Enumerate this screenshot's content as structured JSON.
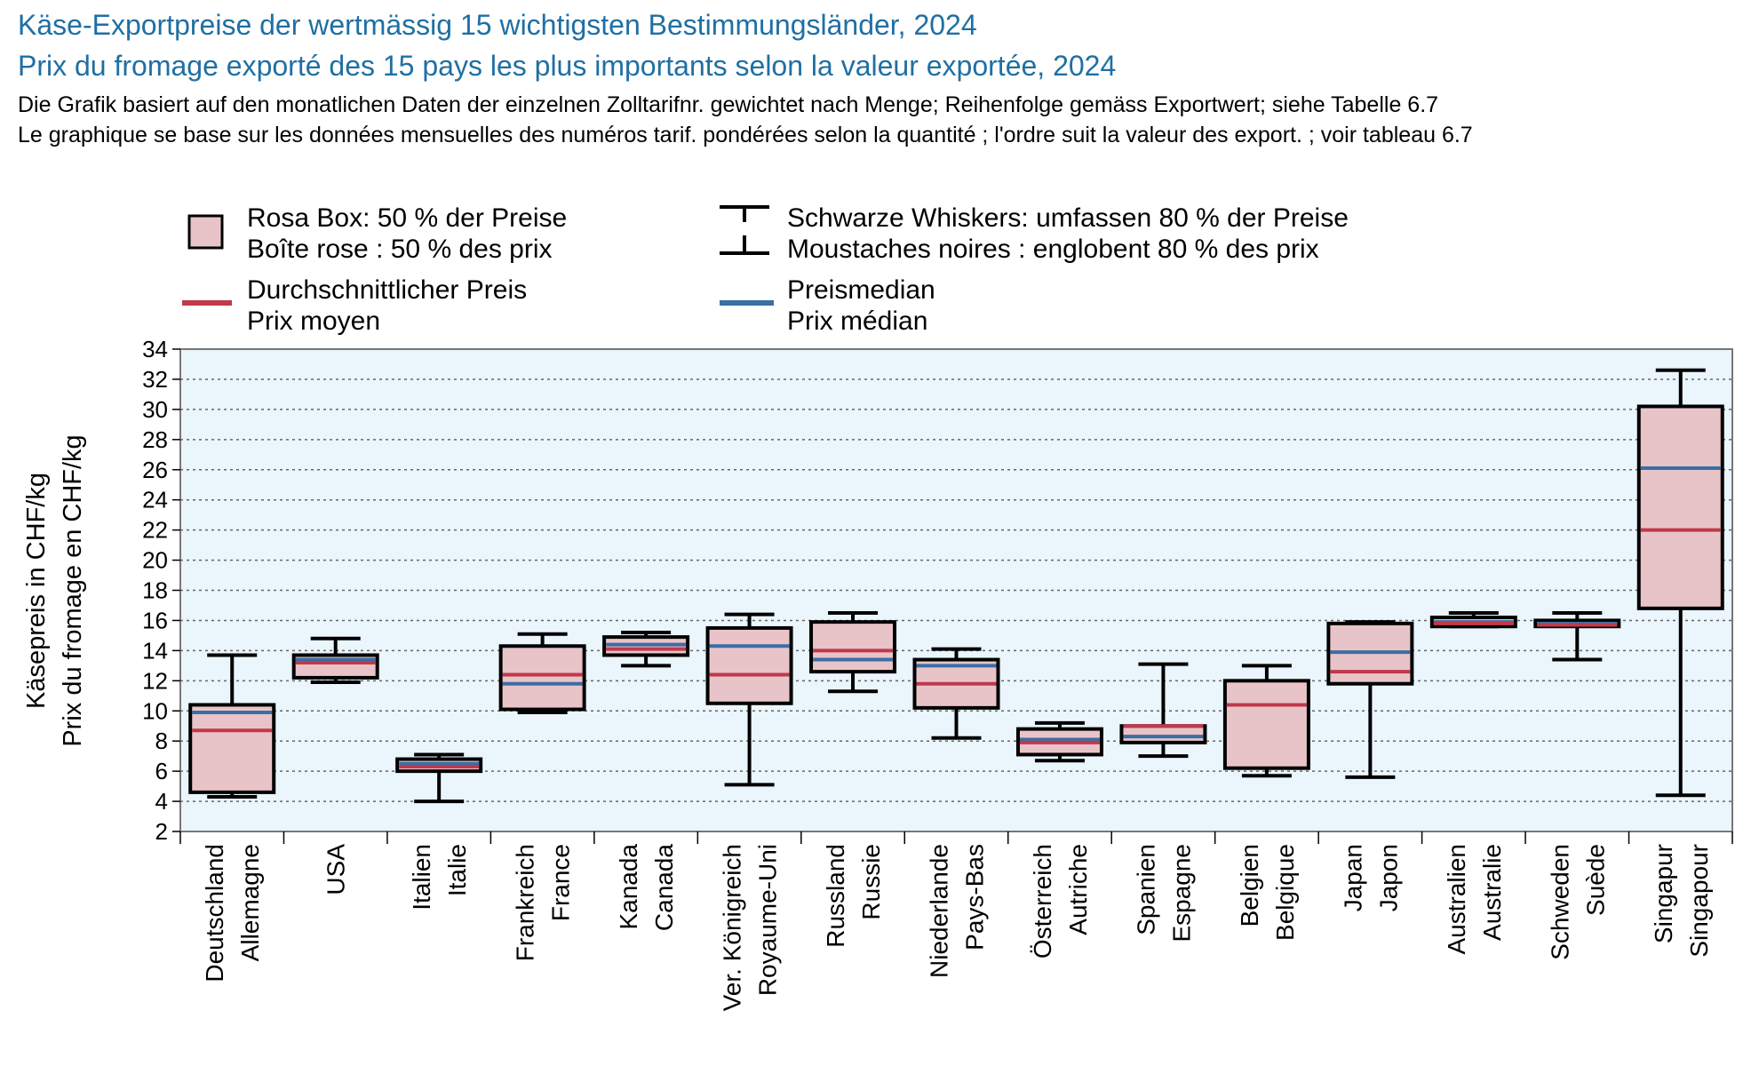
{
  "header": {
    "title_de": "Käse-Exportpreise der wertmässig 15 wichtigsten Bestimmungsländer, 2024",
    "title_fr": "Prix du fromage exporté des 15 pays les plus importants selon la valeur exportée, 2024",
    "note_de": "Die Grafik basiert auf den monatlichen Daten der einzelnen Zolltarifnr. gewichtet nach Menge; Reihenfolge gemäss Exportwert; siehe Tabelle 6.7",
    "note_fr": "Le graphique se base sur les données mensuelles des numéros tarif. pondérées selon la quantité ; l'ordre suit la valeur des export. ; voir tableau 6.7"
  },
  "legend": {
    "box_de": "Rosa Box: 50 % der Preise",
    "box_fr": "Boîte rose : 50 % des prix",
    "whisker_de": "Schwarze Whiskers: umfassen 80 % der Preise",
    "whisker_fr": "Moustaches noires : englobent 80 % des prix",
    "mean_de": "Durchschnittlicher Preis",
    "mean_fr": "Prix moyen",
    "median_de": "Preismedian",
    "median_fr": "Prix médian"
  },
  "colors": {
    "box_fill": "#e8c4c9",
    "plot_bg": "#eaf5fc",
    "mean": "#c0394b",
    "median": "#3a6ea5",
    "title": "#1f6fa3",
    "grid": "#666666"
  },
  "chart_data": {
    "type": "box",
    "ylabel_de": "Käsepreis in CHF/kg",
    "ylabel_fr": "Prix du fromage en CHF/kg",
    "ylim": [
      2,
      34
    ],
    "yticks": [
      2,
      4,
      6,
      8,
      10,
      12,
      14,
      16,
      18,
      20,
      22,
      24,
      26,
      28,
      30,
      32,
      34
    ],
    "grid": "horizontal dotted",
    "legend_placement": "top",
    "categories": [
      {
        "de": "Deutschland",
        "fr": "Allemagne",
        "whisker_low": 4.3,
        "q1": 4.6,
        "q3": 10.4,
        "whisker_high": 13.7,
        "mean": 8.7,
        "median": 9.9
      },
      {
        "de": "USA",
        "fr": "",
        "whisker_low": 11.9,
        "q1": 12.2,
        "q3": 13.7,
        "whisker_high": 14.8,
        "mean": 13.2,
        "median": 13.4
      },
      {
        "de": "Italien",
        "fr": "Italie",
        "whisker_low": 4.0,
        "q1": 6.0,
        "q3": 6.8,
        "whisker_high": 7.1,
        "mean": 6.3,
        "median": 6.5
      },
      {
        "de": "Frankreich",
        "fr": "France",
        "whisker_low": 9.9,
        "q1": 10.1,
        "q3": 14.3,
        "whisker_high": 15.1,
        "mean": 12.4,
        "median": 11.8
      },
      {
        "de": "Kanada",
        "fr": "Canada",
        "whisker_low": 13.0,
        "q1": 13.7,
        "q3": 14.9,
        "whisker_high": 15.2,
        "mean": 14.1,
        "median": 14.4
      },
      {
        "de": "Ver. Königreich",
        "fr": "Royaume-Uni",
        "whisker_low": 5.1,
        "q1": 10.5,
        "q3": 15.5,
        "whisker_high": 16.4,
        "mean": 12.4,
        "median": 14.3
      },
      {
        "de": "Russland",
        "fr": "Russie",
        "whisker_low": 11.3,
        "q1": 12.6,
        "q3": 15.9,
        "whisker_high": 16.5,
        "mean": 14.0,
        "median": 13.4
      },
      {
        "de": "Niederlande",
        "fr": "Pays-Bas",
        "whisker_low": 8.2,
        "q1": 10.2,
        "q3": 13.4,
        "whisker_high": 14.1,
        "mean": 11.8,
        "median": 13.0
      },
      {
        "de": "Österreich",
        "fr": "Autriche",
        "whisker_low": 6.7,
        "q1": 7.1,
        "q3": 8.8,
        "whisker_high": 9.2,
        "mean": 7.9,
        "median": 8.1
      },
      {
        "de": "Spanien",
        "fr": "Espagne",
        "whisker_low": 7.0,
        "q1": 7.9,
        "q3": 9.0,
        "whisker_high": 13.1,
        "mean": 9.0,
        "median": 8.3
      },
      {
        "de": "Belgien",
        "fr": "Belgique",
        "whisker_low": 5.7,
        "q1": 6.2,
        "q3": 12.0,
        "whisker_high": 13.0,
        "mean": 10.4,
        "median": 10.4
      },
      {
        "de": "Japan",
        "fr": "Japon",
        "whisker_low": 5.6,
        "q1": 11.8,
        "q3": 15.8,
        "whisker_high": 15.9,
        "mean": 12.6,
        "median": 13.9
      },
      {
        "de": "Australien",
        "fr": "Australie",
        "whisker_low": 15.6,
        "q1": 15.6,
        "q3": 16.2,
        "whisker_high": 16.5,
        "mean": 15.8,
        "median": 15.9
      },
      {
        "de": "Schweden",
        "fr": "Suède",
        "whisker_low": 13.4,
        "q1": 15.6,
        "q3": 16.0,
        "whisker_high": 16.5,
        "mean": 15.7,
        "median": 15.8
      },
      {
        "de": "Singapur",
        "fr": "Singapour",
        "whisker_low": 4.4,
        "q1": 16.8,
        "q3": 30.2,
        "whisker_high": 32.6,
        "mean": 22.0,
        "median": 26.1
      }
    ]
  }
}
